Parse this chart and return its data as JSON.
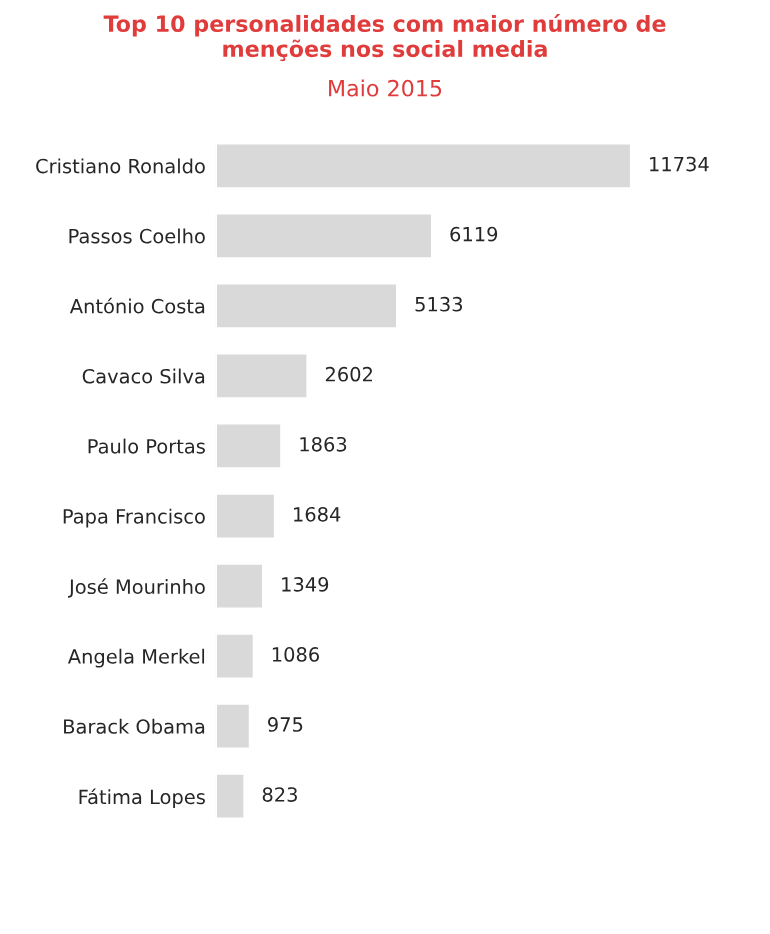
{
  "chart_data": {
    "type": "bar",
    "orientation": "horizontal",
    "title": "Top 10 personalidades com maior número de\nmenções nos social media",
    "subtitle": "Maio 2015",
    "categories": [
      "Cristiano Ronaldo",
      "Passos Coelho",
      "António Costa",
      "Cavaco Silva",
      "Paulo Portas",
      "Papa Francisco",
      "José Mourinho",
      "Angela Merkel",
      "Barack Obama",
      "Fátima Lopes"
    ],
    "values": [
      11734,
      6119,
      5133,
      2602,
      1863,
      1684,
      1349,
      1086,
      975,
      823
    ],
    "color": "#d9d9d9",
    "data_labels": true,
    "grid": false,
    "legend": false
  }
}
